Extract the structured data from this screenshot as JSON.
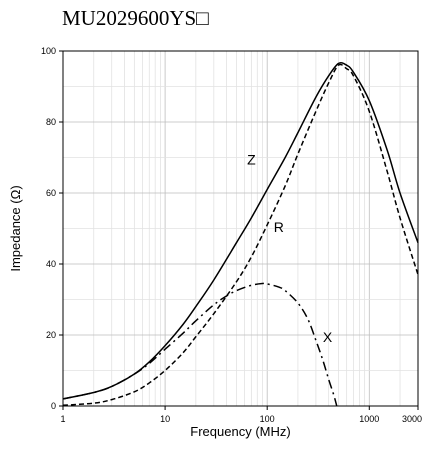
{
  "chart_data": {
    "type": "line",
    "title": "MU2029600YS□",
    "xlabel": "Frequency (MHz)",
    "ylabel": "Impedance (Ω)",
    "xscale": "log",
    "xlim": [
      1,
      3000
    ],
    "ylim": [
      0,
      100
    ],
    "grid": true,
    "x_ticks": [
      {
        "value": 1,
        "label": "1"
      },
      {
        "value": 10,
        "label": "10"
      },
      {
        "value": 100,
        "label": "100"
      },
      {
        "value": 1000,
        "label": "1000"
      },
      {
        "value": 3000,
        "label": "3000"
      }
    ],
    "y_ticks": [
      {
        "value": 0,
        "label": "0"
      },
      {
        "value": 20,
        "label": "20"
      },
      {
        "value": 40,
        "label": "40"
      },
      {
        "value": 60,
        "label": "60"
      },
      {
        "value": 80,
        "label": "80"
      },
      {
        "value": 100,
        "label": "100"
      }
    ],
    "series": [
      {
        "name": "Z",
        "style": "solid",
        "label_at": [
          70,
          68
        ],
        "x": [
          1,
          2,
          3,
          5,
          7,
          10,
          15,
          20,
          30,
          50,
          70,
          100,
          150,
          200,
          300,
          400,
          500,
          600,
          700,
          1000,
          1500,
          2000,
          3000
        ],
        "y": [
          2,
          3.8,
          5.5,
          9,
          12.4,
          17,
          23,
          28,
          35.5,
          46,
          53,
          61,
          70,
          77,
          87,
          93,
          96.5,
          96,
          94,
          86,
          72,
          60,
          46
        ]
      },
      {
        "name": "R",
        "style": "dashed",
        "label_at": [
          130,
          49
        ],
        "x": [
          1,
          2,
          3,
          5,
          7,
          10,
          15,
          20,
          30,
          50,
          70,
          100,
          150,
          200,
          300,
          400,
          500,
          600,
          700,
          1000,
          1500,
          2000,
          3000
        ],
        "y": [
          0.2,
          0.8,
          1.8,
          4,
          6.5,
          10,
          15,
          19.5,
          26,
          35,
          42,
          51,
          62,
          71,
          83,
          91,
          96,
          95,
          93,
          83,
          66,
          53,
          37
        ]
      },
      {
        "name": "X",
        "style": "dashdot",
        "label_at": [
          390,
          18
        ],
        "x": [
          1,
          2,
          3,
          5,
          7,
          10,
          15,
          20,
          30,
          40,
          50,
          70,
          90,
          100,
          130,
          150,
          200,
          250,
          300,
          350,
          400,
          450,
          480
        ],
        "y": [
          2,
          3.8,
          5.5,
          9,
          12,
          16,
          20.5,
          24,
          28.5,
          31,
          32.5,
          34,
          34.5,
          34.4,
          33.5,
          32.5,
          29,
          24.5,
          18.5,
          13,
          7.5,
          3,
          0
        ]
      }
    ]
  }
}
